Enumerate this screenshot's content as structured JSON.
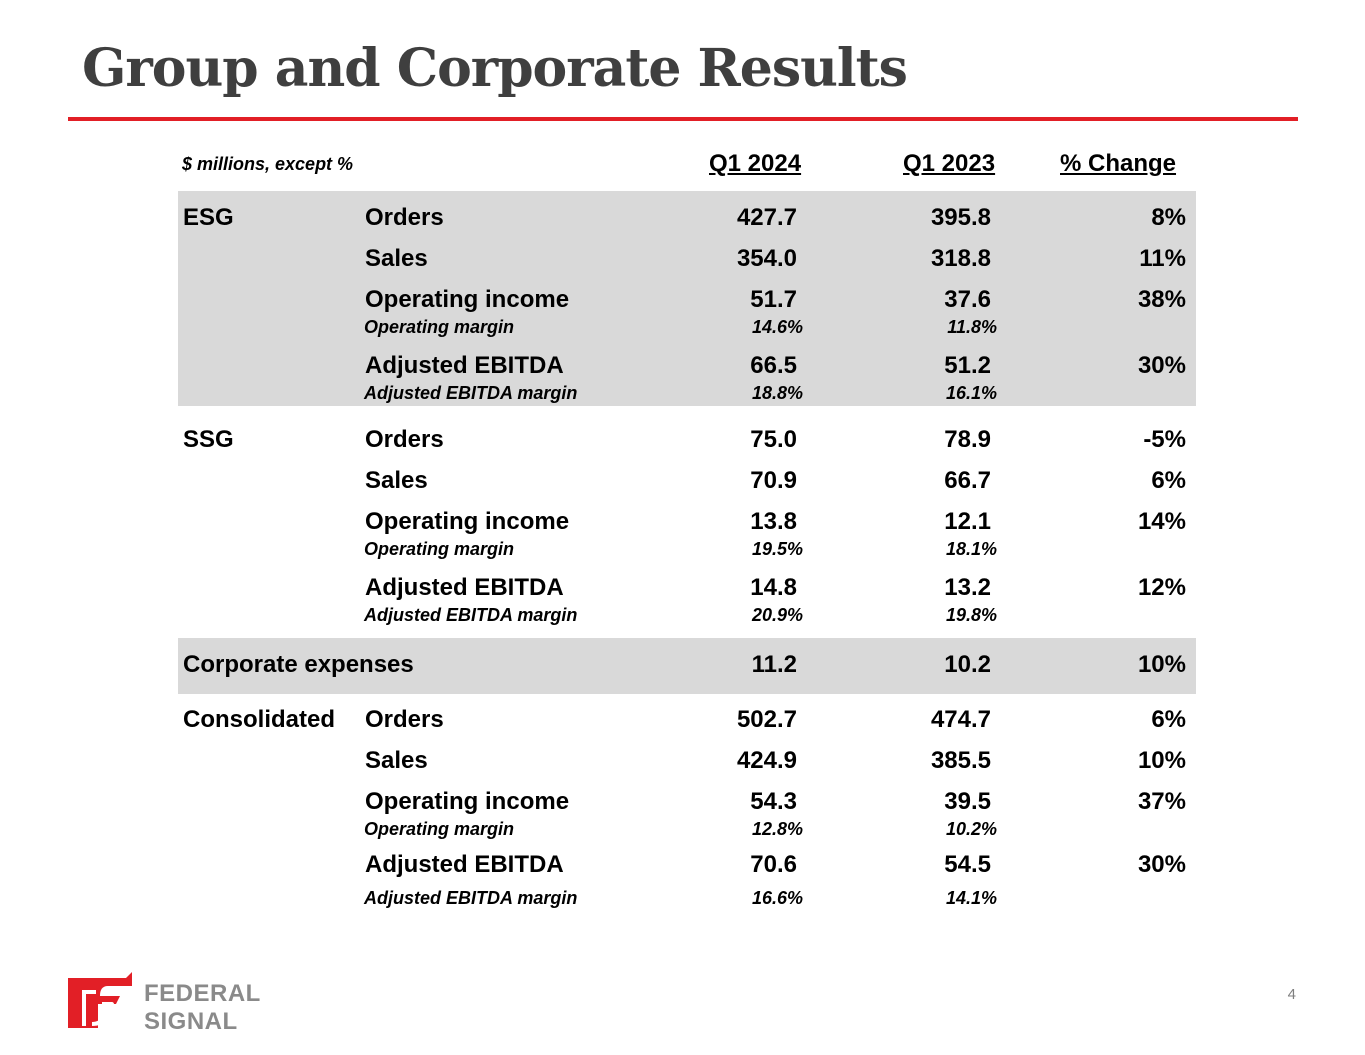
{
  "title": "Group and Corporate Results",
  "table": {
    "units_note": "$ millions, except %",
    "columns": [
      "Q1 2024",
      "Q1 2023",
      "% Change"
    ],
    "esg": {
      "segment": "ESG",
      "orders": {
        "label": "Orders",
        "q1_2024": "427.7",
        "q1_2023": "395.8",
        "change": "8%"
      },
      "sales": {
        "label": "Sales",
        "q1_2024": "354.0",
        "q1_2023": "318.8",
        "change": "11%"
      },
      "operating_income": {
        "label": "Operating income",
        "q1_2024": "51.7",
        "q1_2023": "37.6",
        "change": "38%"
      },
      "operating_margin": {
        "label": "Operating margin",
        "q1_2024": "14.6%",
        "q1_2023": "11.8%"
      },
      "adjusted_ebitda": {
        "label": "Adjusted EBITDA",
        "q1_2024": "66.5",
        "q1_2023": "51.2",
        "change": "30%"
      },
      "adjusted_ebitda_margin": {
        "label": "Adjusted EBITDA margin",
        "q1_2024": "18.8%",
        "q1_2023": "16.1%"
      }
    },
    "ssg": {
      "segment": "SSG",
      "orders": {
        "label": "Orders",
        "q1_2024": "75.0",
        "q1_2023": "78.9",
        "change": "-5%"
      },
      "sales": {
        "label": "Sales",
        "q1_2024": "70.9",
        "q1_2023": "66.7",
        "change": "6%"
      },
      "operating_income": {
        "label": "Operating income",
        "q1_2024": "13.8",
        "q1_2023": "12.1",
        "change": "14%"
      },
      "operating_margin": {
        "label": "Operating margin",
        "q1_2024": "19.5%",
        "q1_2023": "18.1%"
      },
      "adjusted_ebitda": {
        "label": "Adjusted EBITDA",
        "q1_2024": "14.8",
        "q1_2023": "13.2",
        "change": "12%"
      },
      "adjusted_ebitda_margin": {
        "label": "Adjusted EBITDA margin",
        "q1_2024": "20.9%",
        "q1_2023": "19.8%"
      }
    },
    "corporate": {
      "label": "Corporate expenses",
      "q1_2024": "11.2",
      "q1_2023": "10.2",
      "change": "10%"
    },
    "consolidated": {
      "segment": "Consolidated",
      "orders": {
        "label": "Orders",
        "q1_2024": "502.7",
        "q1_2023": "474.7",
        "change": "6%"
      },
      "sales": {
        "label": "Sales",
        "q1_2024": "424.9",
        "q1_2023": "385.5",
        "change": "10%"
      },
      "operating_income": {
        "label": "Operating income",
        "q1_2024": "54.3",
        "q1_2023": "39.5",
        "change": "37%"
      },
      "operating_margin": {
        "label": "Operating margin",
        "q1_2024": "12.8%",
        "q1_2023": "10.2%"
      },
      "adjusted_ebitda": {
        "label": "Adjusted EBITDA",
        "q1_2024": "70.6",
        "q1_2023": "54.5",
        "change": "30%"
      },
      "adjusted_ebitda_margin": {
        "label": "Adjusted EBITDA margin",
        "q1_2024": "16.6%",
        "q1_2023": "14.1%"
      }
    }
  },
  "footer": {
    "logo_text": "FEDERAL SIGNAL",
    "page_number": "4"
  },
  "colors": {
    "accent_red": "#e21f26",
    "band_gray": "#d9d9d9",
    "title_gray": "#3f3f3f"
  }
}
